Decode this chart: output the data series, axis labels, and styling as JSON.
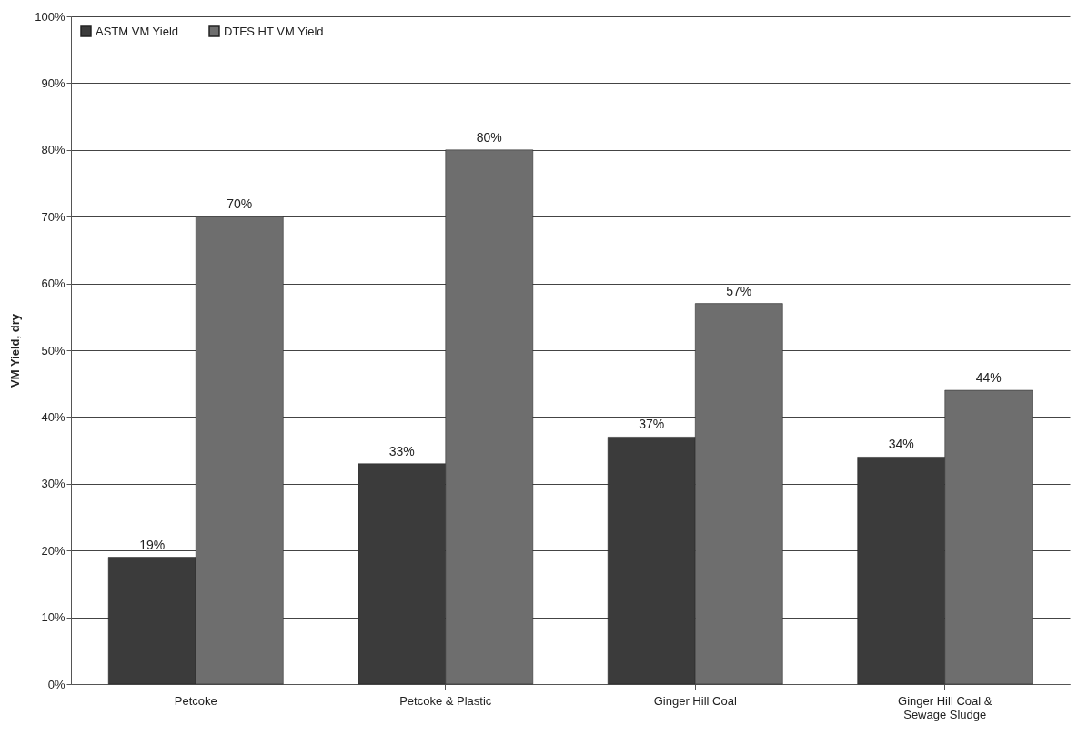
{
  "chart_data": {
    "type": "bar",
    "ylabel": "VM Yield, dry",
    "categories": [
      "Petcoke",
      "Petcoke & Plastic",
      "Ginger Hill Coal",
      "Ginger Hill Coal & Sewage Sludge"
    ],
    "series": [
      {
        "name": "ASTM VM Yield",
        "color": "#3b3b3b",
        "values": [
          19,
          33,
          37,
          34
        ],
        "value_labels": [
          "19%",
          "33%",
          "37%",
          "34%"
        ]
      },
      {
        "name": "DTFS HT VM Yield",
        "color": "#6e6e6e",
        "values": [
          70,
          80,
          57,
          44
        ],
        "value_labels": [
          "70%",
          "80%",
          "57%",
          "44%"
        ]
      }
    ],
    "ylim": [
      0,
      100
    ],
    "yticks": [
      {
        "value": 0,
        "label": "0%"
      },
      {
        "value": 10,
        "label": "10%"
      },
      {
        "value": 20,
        "label": "20%"
      },
      {
        "value": 30,
        "label": "30%"
      },
      {
        "value": 40,
        "label": "40%"
      },
      {
        "value": 50,
        "label": "50%"
      },
      {
        "value": 60,
        "label": "60%"
      },
      {
        "value": 70,
        "label": "70%"
      },
      {
        "value": 80,
        "label": "80%"
      },
      {
        "value": 90,
        "label": "90%"
      },
      {
        "value": 100,
        "label": "100%"
      }
    ],
    "grid": "y",
    "legend": "top left"
  }
}
